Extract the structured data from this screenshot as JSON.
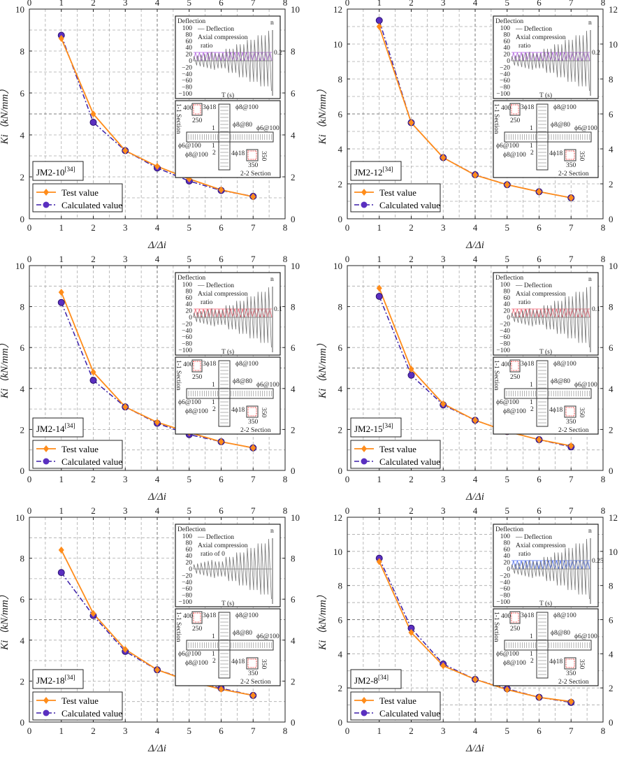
{
  "chart_data": [
    {
      "type": "line",
      "id": "JM2-10",
      "label": "JM2-10",
      "ref": "[34]",
      "ylim": [
        0,
        10
      ],
      "yticks": [
        0,
        2,
        4,
        6,
        8,
        10
      ],
      "axial_ratio": "0.2",
      "axial_color": "#b060e0",
      "axial_text": [
        "Axial compression",
        "ratio"
      ],
      "x": [
        1,
        2,
        3,
        4,
        5,
        6,
        7
      ],
      "series": [
        {
          "name": "Test value",
          "values": [
            8.6,
            5.0,
            3.25,
            2.5,
            1.9,
            1.38,
            1.05
          ]
        },
        {
          "name": "Calculated value",
          "values": [
            8.75,
            4.6,
            3.25,
            2.42,
            1.8,
            1.35,
            1.07
          ]
        }
      ]
    },
    {
      "type": "line",
      "id": "JM2-12",
      "label": "JM2-12",
      "ref": "[34]",
      "ylim": [
        0,
        12
      ],
      "yticks": [
        0,
        2,
        4,
        6,
        8,
        10,
        12
      ],
      "axial_ratio": "0.2",
      "axial_color": "#b060e0",
      "axial_text": [
        "Axial compression",
        "ratio"
      ],
      "x": [
        1,
        2,
        3,
        4,
        5,
        6,
        7
      ],
      "series": [
        {
          "name": "Test value",
          "values": [
            11.0,
            5.5,
            3.5,
            2.5,
            1.95,
            1.55,
            1.2
          ]
        },
        {
          "name": "Calculated value",
          "values": [
            11.35,
            5.5,
            3.5,
            2.52,
            1.95,
            1.55,
            1.2
          ]
        }
      ]
    },
    {
      "type": "line",
      "id": "JM2-14",
      "label": "JM2-14",
      "ref": "[34]",
      "ylim": [
        0,
        10
      ],
      "yticks": [
        0,
        2,
        4,
        6,
        8,
        10
      ],
      "axial_ratio": "0.1",
      "axial_color": "#f06070",
      "axial_text": [
        "Axial compression",
        "ratio"
      ],
      "x": [
        1,
        2,
        3,
        4,
        5,
        6,
        7
      ],
      "series": [
        {
          "name": "Test value",
          "values": [
            8.7,
            4.8,
            3.1,
            2.35,
            1.85,
            1.4,
            1.1
          ]
        },
        {
          "name": "Calculated value",
          "values": [
            8.2,
            4.4,
            3.1,
            2.3,
            1.75,
            1.4,
            1.1
          ]
        }
      ]
    },
    {
      "type": "line",
      "id": "JM2-15",
      "label": "JM2-15",
      "ref": "[34]",
      "ylim": [
        0,
        10
      ],
      "yticks": [
        0,
        2,
        4,
        6,
        8,
        10
      ],
      "axial_ratio": "0.1",
      "axial_color": "#f06070",
      "axial_text": [
        "Axial compression",
        "ratio"
      ],
      "x": [
        1,
        2,
        3,
        4,
        5,
        6,
        7
      ],
      "series": [
        {
          "name": "Test value",
          "values": [
            8.9,
            4.95,
            3.25,
            2.45,
            1.9,
            1.5,
            1.2
          ]
        },
        {
          "name": "Calculated value",
          "values": [
            8.5,
            4.65,
            3.2,
            2.45,
            1.9,
            1.5,
            1.15
          ]
        }
      ]
    },
    {
      "type": "line",
      "id": "JM2-18",
      "label": "JM2-18",
      "ref": "[34]",
      "ylim": [
        0,
        10
      ],
      "yticks": [
        0,
        2,
        4,
        6,
        8,
        10
      ],
      "axial_ratio": "",
      "axial_color": "",
      "axial_text": [
        "Axial compression",
        "ratio of 0"
      ],
      "x": [
        1,
        2,
        3,
        4,
        5,
        6,
        7
      ],
      "series": [
        {
          "name": "Test value",
          "values": [
            8.4,
            5.3,
            3.55,
            2.55,
            2.0,
            1.6,
            1.3
          ]
        },
        {
          "name": "Calculated value",
          "values": [
            7.3,
            5.2,
            3.45,
            2.55,
            2.05,
            1.65,
            1.3
          ]
        }
      ]
    },
    {
      "type": "line",
      "id": "JM2-8",
      "label": "JM2-8",
      "ref": "[34]",
      "ylim": [
        0,
        12
      ],
      "yticks": [
        0,
        2,
        4,
        6,
        8,
        10,
        12
      ],
      "axial_ratio": "0.25",
      "axial_color": "#5070f0",
      "axial_text": [
        "Axial compression",
        "ratio"
      ],
      "x": [
        1,
        2,
        3,
        4,
        5,
        6,
        7
      ],
      "series": [
        {
          "name": "Test value",
          "values": [
            9.4,
            5.25,
            3.3,
            2.5,
            1.9,
            1.45,
            1.2
          ]
        },
        {
          "name": "Calculated value",
          "values": [
            9.6,
            5.5,
            3.4,
            2.5,
            1.95,
            1.45,
            1.15
          ]
        }
      ]
    }
  ],
  "axes": {
    "xlabel": "Δ/Δi",
    "ylabel": "Ki（kN/mm）",
    "xlim": [
      0,
      8
    ],
    "xticks": [
      0,
      1,
      2,
      3,
      4,
      5,
      6,
      7,
      8
    ]
  },
  "inset": {
    "title": "Deflection",
    "legend_deflection": "Deflection",
    "n_label": "n",
    "t_label": "T (s)",
    "yticks": [
      "100",
      "80",
      "60",
      "40",
      "20",
      "0",
      "−20",
      "−40",
      "−60",
      "−80",
      "−100"
    ],
    "section": {
      "s1": "1-1  Section",
      "s2": "2-2 Section",
      "d400": "400",
      "d250": "250",
      "d350a": "350",
      "d350b": "350",
      "r1": "3ϕ18",
      "r2": "ϕ8@100",
      "r3": "ϕ8@80",
      "r4": "ϕ6@100",
      "r5": "ϕ6@100",
      "r6": "ϕ8@100",
      "r7": "4ϕ18",
      "m1": "1",
      "m2": "1",
      "m3": "2"
    }
  },
  "colors": {
    "test": "#ff8c1a",
    "calc": "#3b1fa8",
    "calc_marker": "#5a2fc0"
  }
}
